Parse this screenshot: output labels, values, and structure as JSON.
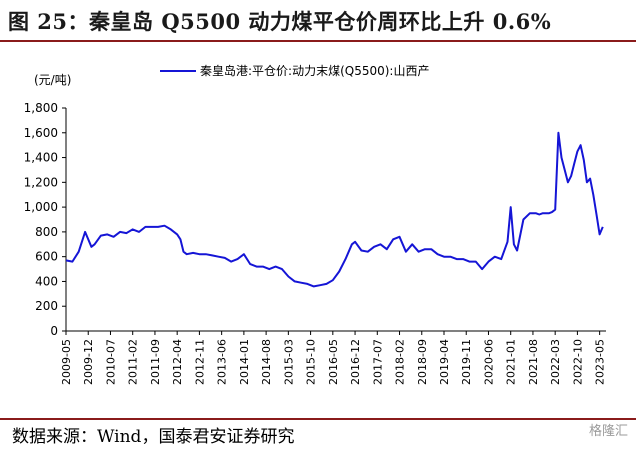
{
  "figure": {
    "title": "图 25：秦皇岛 Q5500 动力煤平仓价周环比上升 0.6%",
    "source": "数据来源：Wind，国泰君安证券研究",
    "watermark": "格隆汇"
  },
  "colors": {
    "series": "#1515d6",
    "rule": "#8a1b1b",
    "axis": "#000000"
  },
  "chart_data": {
    "type": "line",
    "title": "",
    "ylabel": "(元/吨)",
    "xlabel": "",
    "ylim": [
      0,
      1800
    ],
    "yticks": [
      0,
      200,
      400,
      600,
      800,
      1000,
      1200,
      1400,
      1600,
      1800
    ],
    "ytick_labels": [
      "0",
      "200",
      "400",
      "600",
      "800",
      "1,000",
      "1,200",
      "1,400",
      "1,600",
      "1,800"
    ],
    "xlim": [
      "2009-05",
      "2023-07"
    ],
    "xticks": [
      "2009-05",
      "2009-12",
      "2010-07",
      "2011-02",
      "2011-09",
      "2012-04",
      "2012-11",
      "2013-06",
      "2014-01",
      "2014-08",
      "2015-03",
      "2015-10",
      "2016-05",
      "2016-12",
      "2017-07",
      "2018-02",
      "2018-09",
      "2019-04",
      "2019-11",
      "2020-06",
      "2021-01",
      "2021-08",
      "2022-03",
      "2022-10",
      "2023-05"
    ],
    "grid": false,
    "legend_position": "top",
    "series": [
      {
        "name": "秦皇岛港:平仓价:动力末煤(Q5500):山西产",
        "x": [
          "2009-05",
          "2009-07",
          "2009-09",
          "2009-11",
          "2010-01",
          "2010-02",
          "2010-04",
          "2010-06",
          "2010-08",
          "2010-10",
          "2010-12",
          "2011-02",
          "2011-04",
          "2011-06",
          "2011-08",
          "2011-10",
          "2011-12",
          "2012-02",
          "2012-04",
          "2012-05",
          "2012-06",
          "2012-07",
          "2012-09",
          "2012-11",
          "2013-01",
          "2013-03",
          "2013-05",
          "2013-07",
          "2013-09",
          "2013-11",
          "2014-01",
          "2014-03",
          "2014-05",
          "2014-07",
          "2014-09",
          "2014-11",
          "2015-01",
          "2015-03",
          "2015-05",
          "2015-07",
          "2015-09",
          "2015-11",
          "2016-01",
          "2016-03",
          "2016-05",
          "2016-07",
          "2016-09",
          "2016-11",
          "2016-12",
          "2017-02",
          "2017-04",
          "2017-06",
          "2017-08",
          "2017-10",
          "2017-12",
          "2018-02",
          "2018-04",
          "2018-06",
          "2018-08",
          "2018-10",
          "2018-12",
          "2019-02",
          "2019-04",
          "2019-06",
          "2019-08",
          "2019-10",
          "2019-12",
          "2020-02",
          "2020-04",
          "2020-06",
          "2020-08",
          "2020-10",
          "2020-12",
          "2021-01",
          "2021-02",
          "2021-03",
          "2021-05",
          "2021-07",
          "2021-09",
          "2021-10",
          "2021-11",
          "2021-12",
          "2022-01",
          "2022-02",
          "2022-03",
          "2022-04",
          "2022-05",
          "2022-06",
          "2022-07",
          "2022-08",
          "2022-09",
          "2022-10",
          "2022-11",
          "2022-12",
          "2023-01",
          "2023-02",
          "2023-03",
          "2023-04",
          "2023-05",
          "2023-06"
        ],
        "values": [
          570,
          560,
          640,
          800,
          680,
          700,
          770,
          780,
          760,
          800,
          790,
          820,
          800,
          840,
          840,
          840,
          850,
          820,
          780,
          740,
          640,
          620,
          630,
          620,
          620,
          610,
          600,
          590,
          560,
          580,
          620,
          540,
          520,
          520,
          500,
          520,
          500,
          440,
          400,
          390,
          380,
          360,
          370,
          380,
          410,
          480,
          580,
          700,
          720,
          650,
          640,
          680,
          700,
          660,
          740,
          760,
          640,
          700,
          640,
          660,
          660,
          620,
          600,
          600,
          580,
          580,
          560,
          560,
          500,
          560,
          600,
          580,
          720,
          1000,
          700,
          650,
          900,
          950,
          950,
          940,
          950,
          950,
          950,
          960,
          980,
          1600,
          1400,
          1300,
          1200,
          1250,
          1350,
          1450,
          1500,
          1380,
          1200,
          1230,
          1100,
          940,
          780,
          840
        ]
      }
    ]
  }
}
